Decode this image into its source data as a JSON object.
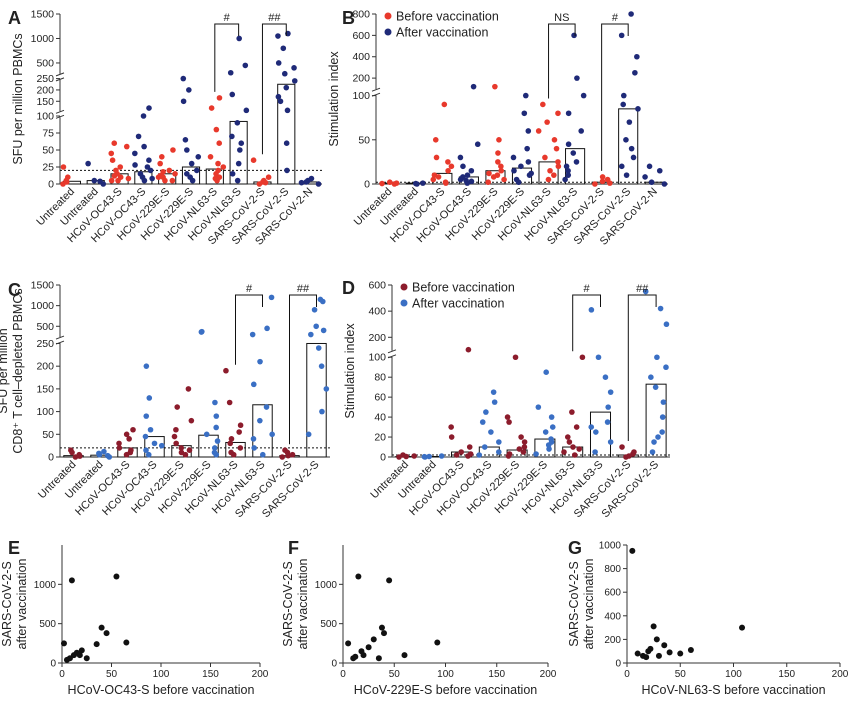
{
  "colors": {
    "before_red": "#e8392c",
    "after_navy": "#1f2a78",
    "before_maroon": "#8c1c2c",
    "after_blue": "#3a6fc4"
  },
  "panel_labels": [
    "A",
    "B",
    "C",
    "D",
    "E",
    "F",
    "G"
  ],
  "chart_data": [
    {
      "id": "A",
      "type": "scatter",
      "ylabel": "SFU per million PBMCs",
      "categories": [
        "Untreated",
        "Untreated",
        "HCoV-OC43-S",
        "HCoV-OC43-S",
        "HCoV-229E-S",
        "HCoV-229E-S",
        "HCoV-NL63-S",
        "HCoV-NL63-S",
        "SARS-CoV-2-S",
        "SARS-CoV-2-S",
        "SARS-CoV-2-N"
      ],
      "groups": [
        "before",
        "after",
        "before",
        "after",
        "before",
        "after",
        "before",
        "after",
        "before",
        "after",
        "after"
      ],
      "yticks": [
        "0",
        "25",
        "50",
        "75",
        "100",
        "150",
        "200",
        "250",
        "500",
        "1000",
        "1500"
      ],
      "bars": [
        4,
        5,
        15,
        18,
        15,
        25,
        22,
        92,
        3,
        225,
        3
      ],
      "points": [
        [
          0,
          5,
          25,
          10,
          3
        ],
        [
          0,
          4,
          30,
          5
        ],
        [
          5,
          10,
          15,
          20,
          25,
          35,
          45,
          55,
          60,
          5,
          8,
          12
        ],
        [
          5,
          10,
          15,
          20,
          28,
          35,
          45,
          55,
          70,
          100,
          120,
          25,
          8
        ],
        [
          5,
          10,
          15,
          20,
          30,
          40,
          50,
          5,
          10,
          12,
          18
        ],
        [
          10,
          20,
          30,
          40,
          50,
          65,
          150,
          200,
          250,
          5,
          15
        ],
        [
          5,
          10,
          15,
          20,
          25,
          30,
          40,
          60,
          80,
          120,
          165,
          8
        ],
        [
          15,
          30,
          50,
          70,
          90,
          110,
          180,
          300,
          450,
          1000,
          5,
          60
        ],
        [
          0,
          3,
          5,
          10,
          35,
          2
        ],
        [
          20,
          60,
          110,
          170,
          210,
          240,
          280,
          400,
          500,
          800,
          1050,
          1100,
          150
        ],
        [
          0,
          2,
          5,
          3,
          8
        ]
      ],
      "annotations": [
        {
          "text": "#",
          "pair": [
            6,
            7
          ]
        },
        {
          "text": "##",
          "pair": [
            8,
            9
          ]
        }
      ]
    },
    {
      "id": "B",
      "type": "scatter",
      "ylabel": "Stimulation index",
      "legend": [
        "Before vaccination",
        "After vaccination"
      ],
      "categories": [
        "Untreated",
        "Untreated",
        "HCoV-OC43-S",
        "HCoV-OC43-S",
        "HCoV-229E-S",
        "HCoV-229E-S",
        "HCoV-NL63-S",
        "HCoV-NL63-S",
        "SARS-CoV-2-S",
        "SARS-CoV-2-S",
        "SARS-CoV-2-N"
      ],
      "groups": [
        "before",
        "after",
        "before",
        "after",
        "before",
        "after",
        "before",
        "after",
        "before",
        "after",
        "after"
      ],
      "yticks": [
        "0",
        "50",
        "100",
        "200",
        "400",
        "600",
        "800"
      ],
      "bars": [
        1,
        1,
        12,
        8,
        15,
        18,
        25,
        40,
        2,
        85,
        2
      ],
      "points": [
        [
          0,
          1,
          2,
          0.5
        ],
        [
          0,
          1,
          0.5
        ],
        [
          2,
          5,
          10,
          15,
          20,
          25,
          30,
          50,
          90,
          1,
          8
        ],
        [
          1,
          3,
          5,
          8,
          10,
          15,
          20,
          30,
          45,
          120,
          4
        ],
        [
          2,
          5,
          8,
          12,
          15,
          20,
          25,
          35,
          50,
          120,
          10
        ],
        [
          2,
          5,
          10,
          15,
          20,
          25,
          30,
          40,
          60,
          80,
          100,
          12
        ],
        [
          5,
          10,
          15,
          20,
          25,
          30,
          40,
          50,
          60,
          70,
          80,
          90
        ],
        [
          5,
          10,
          15,
          20,
          35,
          45,
          60,
          80,
          100,
          200,
          600,
          25
        ],
        [
          0,
          1,
          3,
          5,
          8
        ],
        [
          10,
          20,
          30,
          50,
          70,
          85,
          90,
          100,
          250,
          400,
          600,
          800,
          40
        ],
        [
          0,
          2,
          8,
          15,
          20
        ]
      ],
      "annotations": [
        {
          "text": "NS",
          "pair": [
            6,
            7
          ]
        },
        {
          "text": "#",
          "pair": [
            8,
            9
          ]
        }
      ]
    },
    {
      "id": "C",
      "type": "scatter",
      "ylabel": "SFU per million CD8⁺ T cell–depleted PBMCs",
      "categories": [
        "Untreated",
        "Untreated",
        "HCoV-OC43-S",
        "HCoV-OC43-S",
        "HCoV-229E-S",
        "HCoV-229E-S",
        "HCoV-NL63-S",
        "HCoV-NL63-S",
        "SARS-CoV-2-S",
        "SARS-CoV-2-S"
      ],
      "groups": [
        "before",
        "after",
        "before",
        "after",
        "before",
        "after",
        "before",
        "after",
        "before",
        "after"
      ],
      "yticks": [
        "0",
        "50",
        "100",
        "150",
        "200",
        "250",
        "500",
        "1000",
        "1500"
      ],
      "bars": [
        3,
        4,
        20,
        45,
        25,
        48,
        32,
        115,
        3,
        250
      ],
      "points": [
        [
          0,
          5,
          10,
          15,
          2
        ],
        [
          0,
          3,
          8,
          12,
          5
        ],
        [
          5,
          10,
          20,
          30,
          40,
          50,
          60,
          15
        ],
        [
          5,
          15,
          30,
          45,
          60,
          90,
          130,
          200,
          25
        ],
        [
          5,
          10,
          20,
          30,
          45,
          60,
          80,
          110,
          150,
          15
        ],
        [
          10,
          20,
          35,
          50,
          65,
          90,
          120,
          360,
          370,
          5
        ],
        [
          10,
          20,
          30,
          40,
          55,
          70,
          120,
          190,
          5
        ],
        [
          5,
          20,
          50,
          80,
          110,
          160,
          210,
          300,
          450,
          1200,
          40
        ],
        [
          0,
          3,
          5,
          10,
          15
        ],
        [
          50,
          150,
          200,
          240,
          300,
          400,
          500,
          900,
          1100,
          1150,
          100
        ]
      ],
      "annotations": [
        {
          "text": "#",
          "pair": [
            6,
            7
          ]
        },
        {
          "text": "##",
          "pair": [
            8,
            9
          ]
        }
      ]
    },
    {
      "id": "D",
      "type": "scatter",
      "ylabel": "Stimulation index",
      "legend": [
        "Before vaccination",
        "After vaccination"
      ],
      "categories": [
        "Untreated",
        "Untreated",
        "HCoV-OC43-S",
        "HCoV-OC43-S",
        "HCoV-229E-S",
        "HCoV-229E-S",
        "HCoV-NL63-S",
        "HCoV-NL63-S",
        "SARS-CoV-2-S",
        "SARS-CoV-2-S"
      ],
      "groups": [
        "before",
        "after",
        "before",
        "after",
        "before",
        "after",
        "before",
        "after",
        "before",
        "after"
      ],
      "yticks": [
        "0",
        "20",
        "40",
        "60",
        "80",
        "100",
        "200",
        "400",
        "600"
      ],
      "bars": [
        0.5,
        0.5,
        5,
        10,
        7,
        18,
        10,
        45,
        2,
        73
      ],
      "points": [
        [
          0,
          0.5,
          1,
          2
        ],
        [
          0,
          0.5,
          1,
          0.3
        ],
        [
          1,
          3,
          5,
          10,
          20,
          30,
          105,
          2
        ],
        [
          2,
          5,
          10,
          15,
          25,
          35,
          45,
          55,
          65
        ],
        [
          1,
          3,
          5,
          10,
          15,
          20,
          35,
          40,
          100,
          8
        ],
        [
          3,
          8,
          12,
          18,
          25,
          30,
          40,
          50,
          85,
          15
        ],
        [
          2,
          5,
          10,
          15,
          20,
          30,
          45,
          100,
          8
        ],
        [
          5,
          15,
          25,
          35,
          50,
          65,
          80,
          100,
          410,
          30
        ],
        [
          0,
          1,
          3,
          5,
          10
        ],
        [
          5,
          15,
          25,
          40,
          55,
          70,
          80,
          90,
          100,
          300,
          420,
          550,
          20
        ]
      ],
      "annotations": [
        {
          "text": "#",
          "pair": [
            6,
            7
          ]
        },
        {
          "text": "##",
          "pair": [
            8,
            9
          ]
        }
      ]
    },
    {
      "id": "E",
      "type": "scatter",
      "xlabel": "HCoV-OC43-S before vaccination",
      "ylabel": "SARS-CoV-2-S after vaccination",
      "xlim": [
        0,
        200
      ],
      "ylim": [
        0,
        1500
      ],
      "xticks": [
        0,
        50,
        100,
        150,
        200
      ],
      "yticks": [
        0,
        500,
        1000
      ],
      "x": [
        2,
        5,
        8,
        10,
        12,
        15,
        18,
        20,
        25,
        35,
        40,
        45,
        55,
        65
      ],
      "y": [
        250,
        40,
        60,
        1050,
        100,
        130,
        100,
        160,
        60,
        240,
        450,
        380,
        1100,
        260
      ]
    },
    {
      "id": "F",
      "type": "scatter",
      "xlabel": "HCoV-229E-S before vaccination",
      "ylabel": "SARS-CoV-2-S after vaccination",
      "xlim": [
        0,
        200
      ],
      "ylim": [
        0,
        1500
      ],
      "xticks": [
        0,
        50,
        100,
        150,
        200
      ],
      "yticks": [
        0,
        500,
        1000
      ],
      "x": [
        5,
        10,
        12,
        15,
        18,
        20,
        25,
        30,
        35,
        38,
        40,
        45,
        60,
        92
      ],
      "y": [
        250,
        60,
        80,
        1100,
        150,
        100,
        200,
        300,
        60,
        450,
        380,
        1050,
        100,
        260
      ]
    },
    {
      "id": "G",
      "type": "scatter",
      "xlabel": "HCoV-NL63-S before vaccination",
      "ylabel": "SARS-CoV-2-S after vaccination",
      "xlim": [
        0,
        200
      ],
      "ylim": [
        0,
        1000
      ],
      "xticks": [
        0,
        50,
        100,
        150,
        200
      ],
      "yticks": [
        0,
        200,
        400,
        600,
        800,
        1000
      ],
      "x": [
        5,
        10,
        15,
        18,
        20,
        22,
        25,
        28,
        30,
        35,
        40,
        50,
        60,
        108
      ],
      "y": [
        950,
        80,
        60,
        50,
        100,
        120,
        310,
        200,
        60,
        150,
        90,
        80,
        110,
        300
      ]
    }
  ]
}
